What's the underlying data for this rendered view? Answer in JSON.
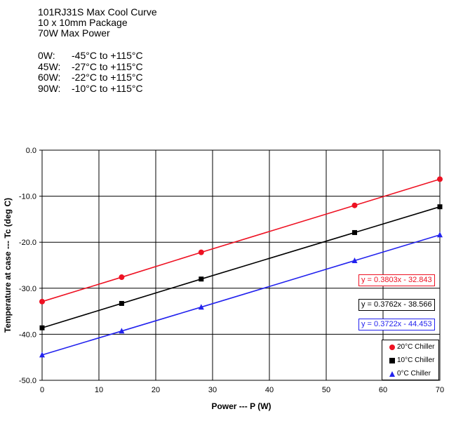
{
  "header": {
    "lines": [
      "101RJ31S Max Cool Curve",
      "10 x 10mm Package",
      "70W Max Power"
    ]
  },
  "specs": [
    {
      "power": "0W:",
      "range": "-45°C to +115°C"
    },
    {
      "power": "45W:",
      "range": "-27°C to +115°C"
    },
    {
      "power": "60W:",
      "range": "-22°C to +115°C"
    },
    {
      "power": "90W:",
      "range": "-10°C to +115°C"
    }
  ],
  "chart_data": {
    "type": "line",
    "xlabel": "Power --- P (W)",
    "ylabel": "Temperature at case --- Tc (deg C)",
    "xlim": [
      0,
      70
    ],
    "ylim": [
      -50,
      0
    ],
    "xticks": [
      "0",
      "10",
      "20",
      "30",
      "40",
      "50",
      "60",
      "70"
    ],
    "yticks": [
      "0.0",
      "-10.0",
      "-20.0",
      "-30.0",
      "-40.0",
      "-50.0"
    ],
    "grid": true,
    "legend_position": "bottom-right",
    "series": [
      {
        "name": "20°C Chiller",
        "color": "#ee1122",
        "marker": "circle",
        "x": [
          0,
          14,
          28,
          55,
          70
        ],
        "y": [
          -32.9,
          -27.6,
          -22.2,
          -12.0,
          -6.3
        ],
        "equation": "y = 0.3803x - 32.843"
      },
      {
        "name": "10°C Chiller",
        "color": "#000000",
        "marker": "square",
        "x": [
          0,
          14,
          28,
          55,
          70
        ],
        "y": [
          -38.6,
          -33.3,
          -28.0,
          -17.9,
          -12.3
        ],
        "equation": "y = 0.3762x - 38.566"
      },
      {
        "name": "0°C Chiller",
        "color": "#2222ee",
        "marker": "triangle",
        "x": [
          0,
          14,
          28,
          55,
          70
        ],
        "y": [
          -44.5,
          -39.3,
          -34.1,
          -24.0,
          -18.4
        ],
        "equation": "y = 0.3722x - 44.453"
      }
    ]
  }
}
